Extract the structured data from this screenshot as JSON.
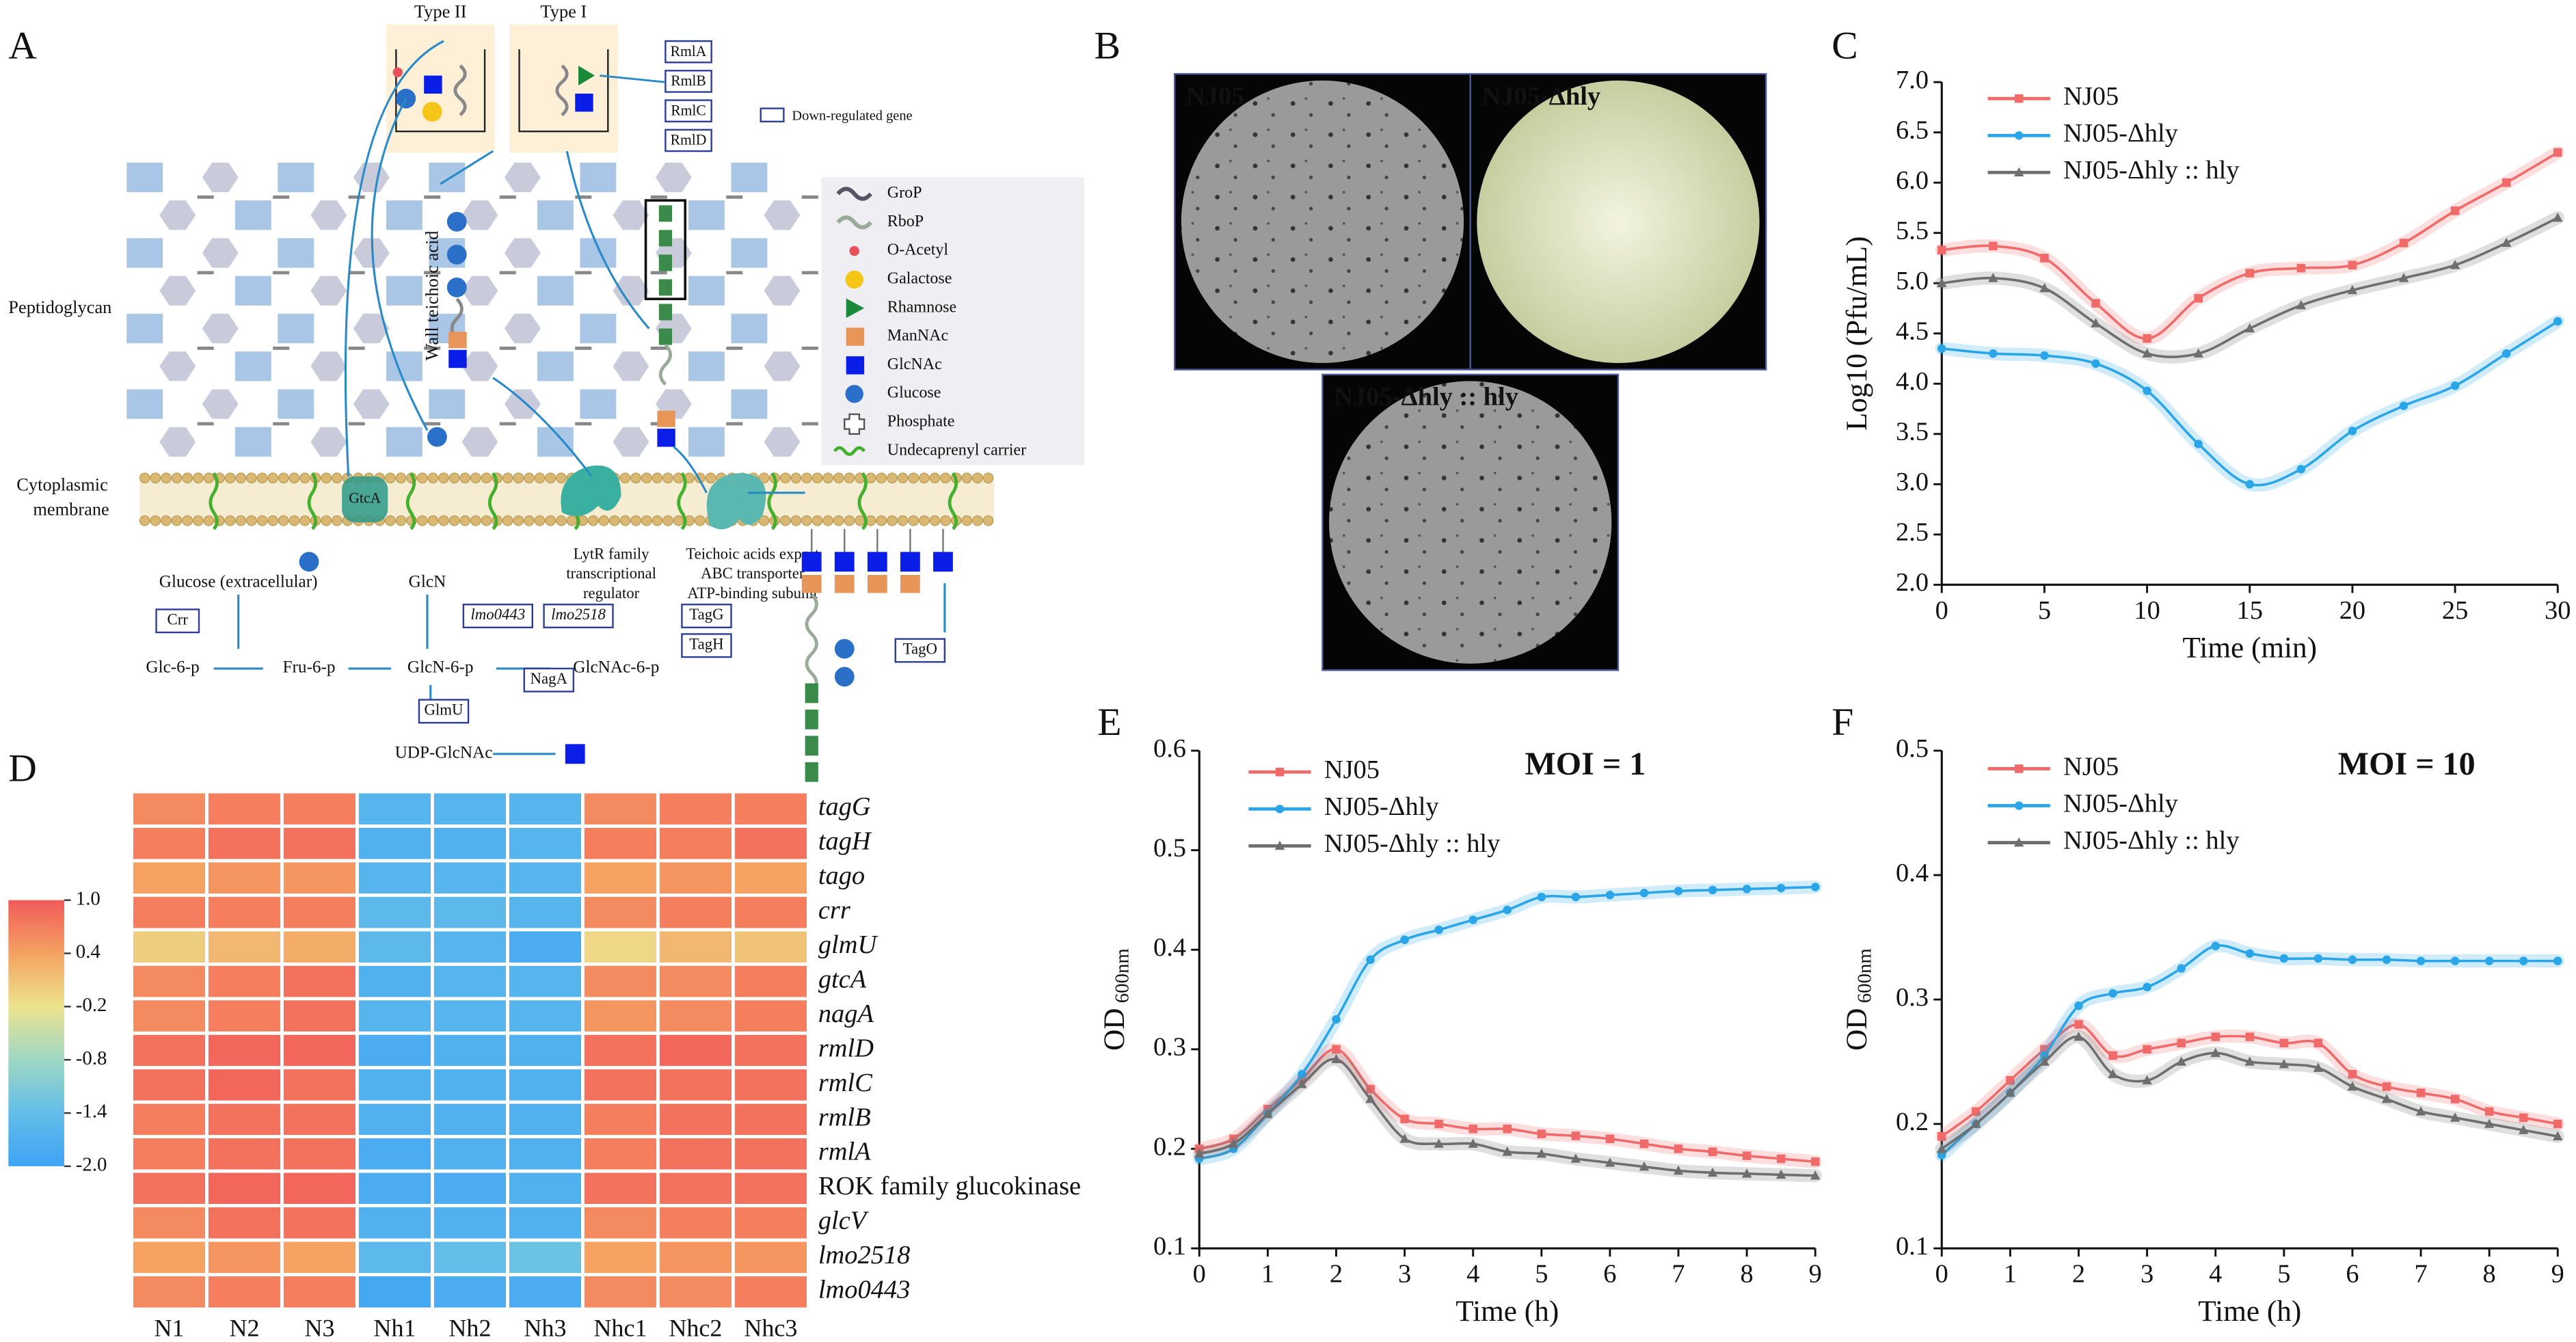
{
  "panel_labels": [
    "A",
    "B",
    "C",
    "D",
    "E",
    "F"
  ],
  "diagram": {
    "type_boxes": [
      "Type II",
      "Type I"
    ],
    "enzymes": [
      "RmlA",
      "RmlB",
      "RmlC",
      "RmlD"
    ],
    "key": "Down-regulated gene",
    "legend": [
      "GroP",
      "RboP",
      "O-Acetyl",
      "Galactose",
      "Rhamnose",
      "ManNAc",
      "GlcNAc",
      "Glucose",
      "Phosphate",
      "Undecaprenyl carrier"
    ],
    "peptidoglycan": "Peptidoglycan",
    "membrane": [
      "Cytoplasmic",
      "membrane"
    ],
    "wta": "Wall teichoic acid",
    "membrane_protein": "GtcA",
    "metabolites": [
      "Glucose (extracellular)",
      "GlcN",
      "Glc-6-p",
      "Fru-6-p",
      "GlcN-6-p",
      "GlcNAc-6-p",
      "UDP-GlcNAc"
    ],
    "genes_boxed": [
      "Crr",
      "NagA",
      "GlmU",
      "lmo0443",
      "lmo2518",
      "TagG",
      "TagH",
      "TagO"
    ],
    "lytr": [
      "LytR family",
      "transcriptional",
      "regulator"
    ],
    "abc": [
      "Teichoic acids export",
      "ABC transporter",
      "ATP-binding subunit"
    ]
  },
  "plates": {
    "labels": [
      "NJ05",
      "NJ05-Δhly",
      "NJ05-Δhly :: hly"
    ]
  },
  "chart_data": [
    {
      "type": "line",
      "x": [
        0,
        2.5,
        5,
        7.5,
        10,
        12.5,
        15,
        17.5,
        20,
        22.5,
        25,
        27.5,
        30
      ],
      "series": [
        {
          "name": "NJ05",
          "color": "#f06a6a",
          "marker": "square",
          "values": [
            5.33,
            5.37,
            5.25,
            4.8,
            4.45,
            4.85,
            5.1,
            5.15,
            5.18,
            5.4,
            5.72,
            6.0,
            6.3
          ]
        },
        {
          "name": "NJ05-Δhly",
          "color": "#2aa6e8",
          "marker": "circle",
          "values": [
            4.35,
            4.3,
            4.28,
            4.2,
            3.93,
            3.4,
            3.0,
            3.15,
            3.53,
            3.78,
            3.98,
            4.3,
            4.62
          ]
        },
        {
          "name": "NJ05-Δhly :: hly",
          "color": "#6e6e6e",
          "marker": "triangle",
          "values": [
            5.0,
            5.05,
            4.95,
            4.6,
            4.3,
            4.3,
            4.55,
            4.78,
            4.93,
            5.05,
            5.18,
            5.4,
            5.65
          ]
        }
      ],
      "xlim": [
        0,
        30
      ],
      "xticks": [
        0,
        5,
        10,
        15,
        20,
        25,
        30
      ],
      "ylim": [
        2,
        7
      ],
      "yticks": [
        {
          "value": 2,
          "label": "2.0"
        },
        2.5,
        {
          "value": 3,
          "label": "3.0"
        },
        3.5,
        {
          "value": 4,
          "label": "4.0"
        },
        4.5,
        {
          "value": 5,
          "label": "5.0"
        },
        5.5,
        {
          "value": 6,
          "label": "6.0"
        },
        6.5,
        {
          "value": 7,
          "label": "7.0"
        }
      ],
      "xlabel": "Time (min)",
      "ylabel": "Log10 (Pfu/mL)"
    },
    {
      "type": "heatmap",
      "columns": [
        "N1",
        "N2",
        "N3",
        "Nh1",
        "Nh2",
        "Nh3",
        "Nhc1",
        "Nhc2",
        "Nhc3"
      ],
      "rows": [
        "tagG",
        "tagH",
        "tago",
        "crr",
        "glmU",
        "gtcA",
        "nagA",
        "rmlD",
        "rmlC",
        "rmlB",
        "rmlA",
        "ROK family glucokinase",
        "glcV",
        "lmo2518",
        "lmo0443"
      ],
      "row_italic": [
        true,
        true,
        true,
        true,
        true,
        true,
        true,
        true,
        true,
        true,
        true,
        false,
        true,
        true,
        true
      ],
      "values": [
        [
          0.6,
          0.7,
          0.7,
          -1.6,
          -1.6,
          -1.6,
          0.6,
          0.7,
          0.7
        ],
        [
          0.7,
          0.8,
          0.8,
          -1.7,
          -1.7,
          -1.6,
          0.7,
          0.7,
          0.8
        ],
        [
          0.4,
          0.5,
          0.5,
          -1.6,
          -1.6,
          -1.6,
          0.4,
          0.5,
          0.4
        ],
        [
          0.7,
          0.7,
          0.7,
          -1.5,
          -1.5,
          -1.6,
          0.6,
          0.7,
          0.7
        ],
        [
          0.0,
          0.2,
          0.3,
          -1.5,
          -1.6,
          -1.8,
          -0.1,
          0.2,
          0.1
        ],
        [
          0.6,
          0.7,
          0.8,
          -1.7,
          -1.6,
          -1.6,
          0.6,
          0.6,
          0.7
        ],
        [
          0.6,
          0.7,
          0.8,
          -1.6,
          -1.6,
          -1.6,
          0.5,
          0.6,
          0.7
        ],
        [
          0.8,
          0.9,
          0.9,
          -1.8,
          -1.7,
          -1.7,
          0.8,
          0.9,
          0.8
        ],
        [
          0.8,
          0.9,
          0.8,
          -1.7,
          -1.7,
          -1.7,
          0.8,
          0.8,
          0.8
        ],
        [
          0.7,
          0.8,
          0.8,
          -1.7,
          -1.7,
          -1.7,
          0.7,
          0.8,
          0.8
        ],
        [
          0.7,
          0.8,
          0.8,
          -1.8,
          -1.7,
          -1.7,
          0.7,
          0.8,
          0.8
        ],
        [
          0.8,
          0.9,
          0.9,
          -1.8,
          -1.8,
          -1.7,
          0.8,
          0.8,
          0.8
        ],
        [
          0.6,
          0.8,
          0.8,
          -1.7,
          -1.7,
          -1.7,
          0.6,
          0.7,
          0.7
        ],
        [
          0.4,
          0.5,
          0.4,
          -1.5,
          -1.4,
          -1.3,
          0.4,
          0.5,
          0.5
        ],
        [
          0.6,
          0.7,
          0.7,
          -1.9,
          -1.8,
          -1.8,
          0.6,
          0.6,
          0.7
        ]
      ],
      "colorscale": [
        [
          1,
          "#f25a5a"
        ],
        [
          0.4,
          "#f5a262"
        ],
        [
          -0.2,
          "#ece38e"
        ],
        [
          -0.8,
          "#9fd8c4"
        ],
        [
          -1.4,
          "#62bde8"
        ],
        [
          -2,
          "#3fa4f5"
        ]
      ],
      "zlim": [
        -2,
        1
      ],
      "zticks": [
        {
          "value": 1,
          "label": "1.0"
        },
        0.4,
        -0.2,
        -0.8,
        -1.4,
        {
          "value": -2,
          "label": "-2.0"
        }
      ]
    },
    {
      "type": "line",
      "x": [
        0,
        0.5,
        1,
        1.5,
        2,
        2.5,
        3,
        3.5,
        4,
        4.5,
        5,
        5.5,
        6,
        6.5,
        7,
        7.5,
        8,
        8.5,
        9
      ],
      "series": [
        {
          "name": "NJ05",
          "color": "#f06a6a",
          "marker": "square",
          "values": [
            0.2,
            0.21,
            0.24,
            0.27,
            0.3,
            0.26,
            0.23,
            0.225,
            0.22,
            0.22,
            0.215,
            0.213,
            0.21,
            0.205,
            0.2,
            0.197,
            0.193,
            0.19,
            0.187
          ]
        },
        {
          "name": "NJ05-Δhly",
          "color": "#2aa6e8",
          "marker": "circle",
          "values": [
            0.19,
            0.2,
            0.235,
            0.275,
            0.33,
            0.39,
            0.41,
            0.42,
            0.43,
            0.44,
            0.453,
            0.453,
            0.455,
            0.457,
            0.459,
            0.46,
            0.461,
            0.462,
            0.463
          ]
        },
        {
          "name": "NJ05-Δhly :: hly",
          "color": "#6e6e6e",
          "marker": "triangle",
          "values": [
            0.195,
            0.205,
            0.235,
            0.265,
            0.29,
            0.25,
            0.21,
            0.205,
            0.205,
            0.197,
            0.195,
            0.19,
            0.186,
            0.182,
            0.178,
            0.176,
            0.175,
            0.174,
            0.173
          ]
        }
      ],
      "xlim": [
        0,
        9
      ],
      "xticks": [
        0,
        1,
        2,
        3,
        4,
        5,
        6,
        7,
        8,
        9
      ],
      "ylim": [
        0.1,
        0.6
      ],
      "yticks": [
        0.1,
        0.2,
        0.3,
        0.4,
        0.5,
        0.6
      ],
      "xlabel": "Time (h)",
      "ylabel": "OD",
      "ylabel_sub": "600nm",
      "annotation": "MOI = 1"
    },
    {
      "type": "line",
      "x": [
        0,
        0.5,
        1,
        1.5,
        2,
        2.5,
        3,
        3.5,
        4,
        4.5,
        5,
        5.5,
        6,
        6.5,
        7,
        7.5,
        8,
        8.5,
        9
      ],
      "series": [
        {
          "name": "NJ05",
          "color": "#f06a6a",
          "marker": "square",
          "values": [
            0.19,
            0.21,
            0.235,
            0.26,
            0.28,
            0.255,
            0.26,
            0.265,
            0.27,
            0.27,
            0.265,
            0.265,
            0.24,
            0.23,
            0.225,
            0.22,
            0.21,
            0.205,
            0.2
          ]
        },
        {
          "name": "NJ05-Δhly",
          "color": "#2aa6e8",
          "marker": "circle",
          "values": [
            0.175,
            0.2,
            0.225,
            0.255,
            0.295,
            0.305,
            0.31,
            0.325,
            0.343,
            0.337,
            0.333,
            0.333,
            0.332,
            0.332,
            0.331,
            0.331,
            0.331,
            0.331,
            0.331
          ]
        },
        {
          "name": "NJ05-Δhly :: hly",
          "color": "#6e6e6e",
          "marker": "triangle",
          "values": [
            0.18,
            0.2,
            0.225,
            0.25,
            0.27,
            0.24,
            0.235,
            0.25,
            0.257,
            0.25,
            0.248,
            0.245,
            0.23,
            0.22,
            0.21,
            0.205,
            0.2,
            0.195,
            0.19
          ]
        }
      ],
      "xlim": [
        0,
        9
      ],
      "xticks": [
        0,
        1,
        2,
        3,
        4,
        5,
        6,
        7,
        8,
        9
      ],
      "ylim": [
        0.1,
        0.5
      ],
      "yticks": [
        0.1,
        0.2,
        0.3,
        0.4,
        0.5
      ],
      "xlabel": "Time (h)",
      "ylabel": "OD",
      "ylabel_sub": "600nm",
      "annotation": "MOI = 10"
    }
  ]
}
